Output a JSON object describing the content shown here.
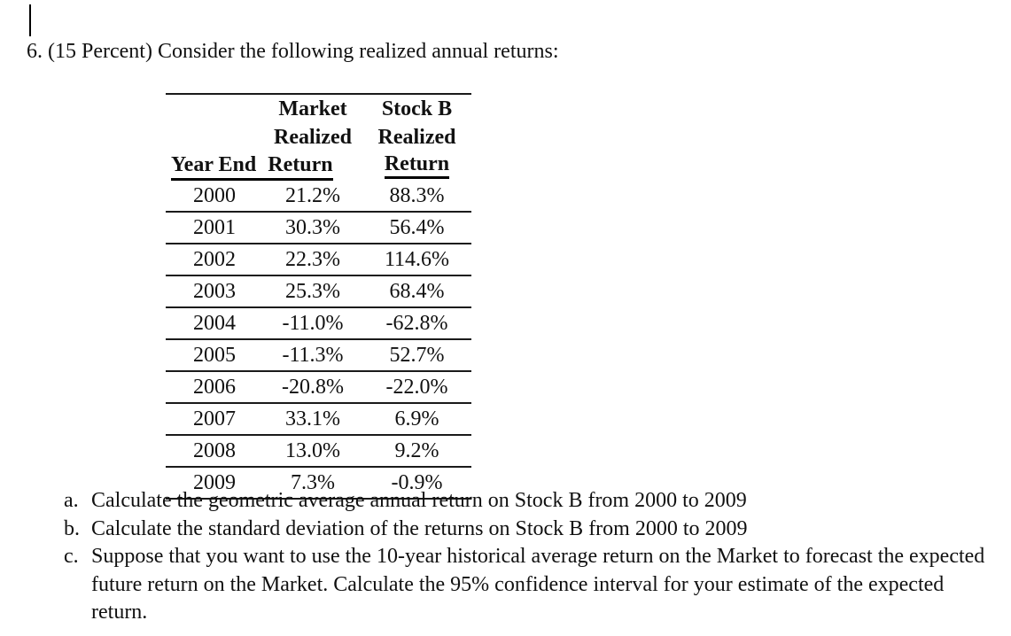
{
  "title": "6. (15 Percent) Consider the following realized annual returns:",
  "table": {
    "columns": [
      {
        "name": "year_end",
        "header_lines": [
          "",
          "",
          "Year End"
        ]
      },
      {
        "name": "market_realized_return",
        "header_lines": [
          "Market",
          "Realized",
          "Return"
        ]
      },
      {
        "name": "stock_b_realized_return",
        "header_lines": [
          "Stock B",
          "Realized",
          "Return"
        ]
      }
    ],
    "rows": [
      {
        "year": "2000",
        "market_return": "21.2%",
        "stock_b_return": "88.3%"
      },
      {
        "year": "2001",
        "market_return": "30.3%",
        "stock_b_return": "56.4%"
      },
      {
        "year": "2002",
        "market_return": "22.3%",
        "stock_b_return": "114.6%"
      },
      {
        "year": "2003",
        "market_return": "25.3%",
        "stock_b_return": "68.4%"
      },
      {
        "year": "2004",
        "market_return": "-11.0%",
        "stock_b_return": "-62.8%"
      },
      {
        "year": "2005",
        "market_return": "-11.3%",
        "stock_b_return": "52.7%"
      },
      {
        "year": "2006",
        "market_return": "-20.8%",
        "stock_b_return": "-22.0%"
      },
      {
        "year": "2007",
        "market_return": "33.1%",
        "stock_b_return": "6.9%"
      },
      {
        "year": "2008",
        "market_return": "13.0%",
        "stock_b_return": "9.2%"
      },
      {
        "year": "2009",
        "market_return": "7.3%",
        "stock_b_return": "-0.9%"
      }
    ]
  },
  "questions": [
    {
      "label": "a.",
      "text": "Calculate the geometric average annual return on Stock B from 2000 to 2009"
    },
    {
      "label": "b.",
      "text": "Calculate the standard deviation of the returns on Stock B from 2000 to 2009"
    },
    {
      "label": "c.",
      "text": "Suppose that you want to use the 10-year historical average return on the Market to forecast the expected future return on the Market. Calculate the 95% confidence interval for your estimate of the expected return."
    }
  ]
}
